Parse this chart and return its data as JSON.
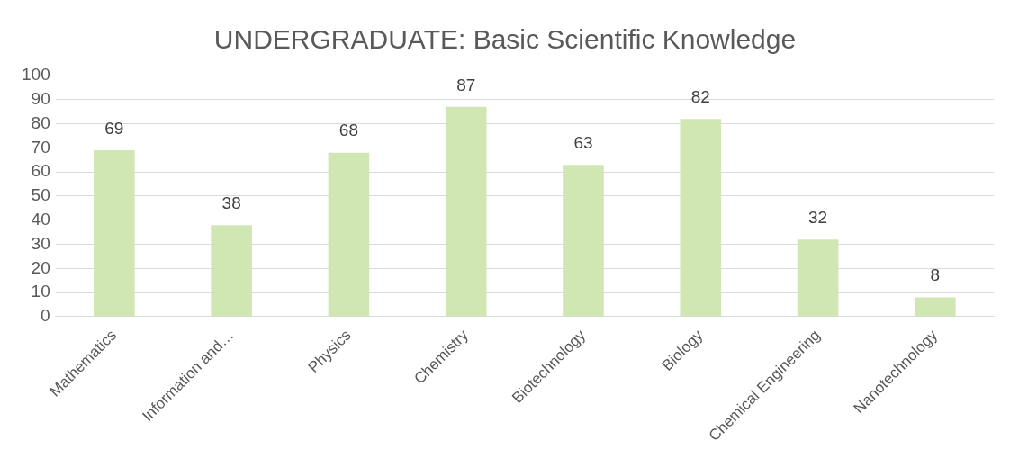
{
  "chart_data": {
    "type": "bar",
    "title": "UNDERGRADUATE: Basic Scientific Knowledge",
    "categories": [
      "Mathematics",
      "Information and…",
      "Physics",
      "Chemistry",
      "Biotechnology",
      "Biology",
      "Chemical Engineering",
      "Nanotechnology"
    ],
    "values": [
      69,
      38,
      68,
      87,
      63,
      82,
      32,
      8
    ],
    "color": "#d0e7b4",
    "ylim": [
      0,
      100
    ],
    "yticks": [
      0,
      10,
      20,
      30,
      40,
      50,
      60,
      70,
      80,
      90,
      100
    ],
    "grid": "y",
    "data_labels": true,
    "legend": false
  }
}
